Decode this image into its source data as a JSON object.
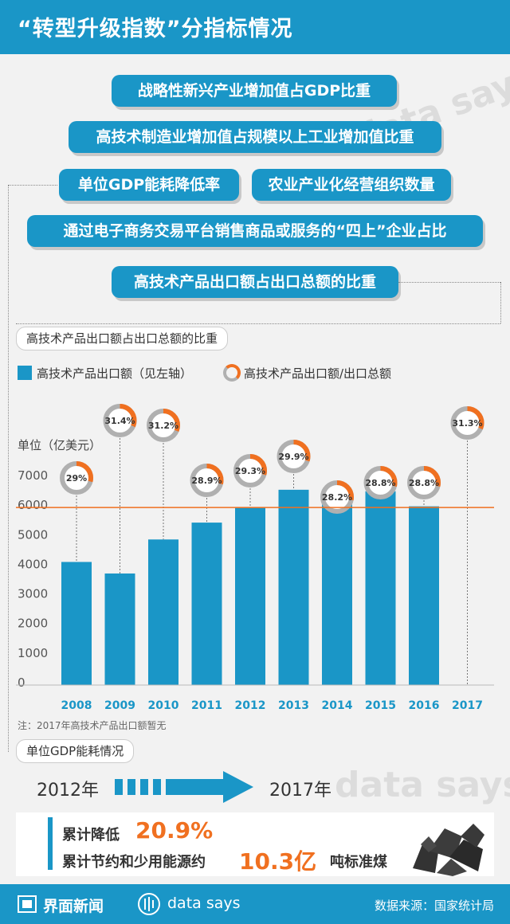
{
  "header": {
    "title": "“转型升级指数”分指标情况"
  },
  "indicators": [
    "战略性新兴产业增加值占GDP比重",
    "高技术制造业增加值占规模以上工业增加值比重",
    "单位GDP能耗降低率",
    "农业产业化经营组织数量",
    "通过电子商务交易平台销售商品或服务的“四上”企业占比",
    "高技术产品出口额占出口总额的比重"
  ],
  "section1": {
    "label": "高技术产品出口额占出口总额的比重"
  },
  "legend": {
    "bar": "高技术产品出口额（见左轴）",
    "ring": "高技术产品出口额/出口总额"
  },
  "unit": "单位（亿美元）",
  "note": "注：2017年高技术产品出口额暂无",
  "chart_data": {
    "type": "bar",
    "categories": [
      "2008",
      "2009",
      "2010",
      "2011",
      "2012",
      "2013",
      "2014",
      "2015",
      "2016",
      "2017"
    ],
    "series": [
      {
        "name": "高技术产品出口额（见左轴）",
        "values": [
          4160,
          3770,
          4920,
          5490,
          6010,
          6600,
          6610,
          6550,
          6040,
          null
        ]
      },
      {
        "name": "高技术产品出口额/出口总额",
        "values": [
          29,
          31.4,
          31.2,
          28.9,
          29.3,
          29.9,
          28.2,
          28.8,
          28.8,
          31.3
        ]
      }
    ],
    "ring_labels": [
      "29%",
      "31.4%",
      "31.2%",
      "28.9%",
      "29.3%",
      "29.9%",
      "28.2%",
      "28.8%",
      "28.8%",
      "31.3%"
    ],
    "y_ticks": [
      "0",
      "1000",
      "2000",
      "3000",
      "4000",
      "5000",
      "6000",
      "7000"
    ],
    "ylim": [
      0,
      7000
    ],
    "ylabel": "单位（亿美元）",
    "colors": {
      "bar": "#1a96c7",
      "ring": "#f07020",
      "ring_bg": "#b0b0b0",
      "ref_line": "#f07020"
    }
  },
  "section2": {
    "label": "单位GDP能耗情况"
  },
  "years": {
    "from": "2012年",
    "to": "2017年"
  },
  "stats": [
    {
      "label": "累计降低",
      "value": "20.9%",
      "suffix": ""
    },
    {
      "label": "累计节约和少用能源约",
      "value": "10.3亿",
      "suffix": "吨标准煤"
    }
  ],
  "footer": {
    "brand1": "界面新闻",
    "brand2": "data says",
    "source": "数据来源：国家统计局"
  },
  "colors": {
    "primary": "#1a96c7",
    "accent": "#f07020"
  }
}
